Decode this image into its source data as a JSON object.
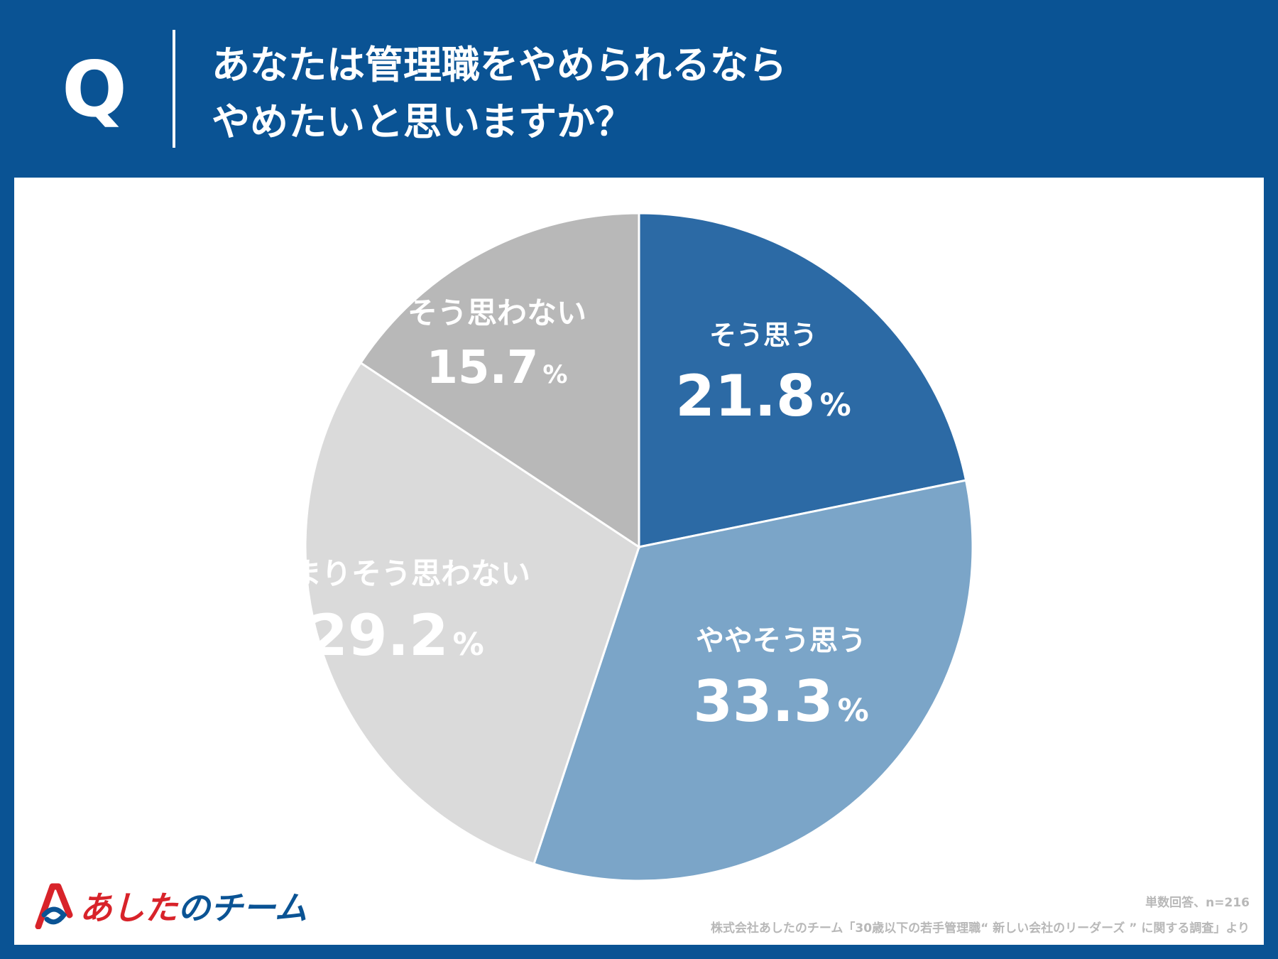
{
  "header": {
    "q_mark": "Q",
    "question_line1": "あなたは管理職をやめられるなら",
    "question_line2": "やめたいと思いますか？"
  },
  "chart_data": {
    "type": "pie",
    "title": "あなたは管理職をやめられるならやめたいと思いますか？",
    "start_angle_deg": 0,
    "direction": "clockwise",
    "slices": [
      {
        "label": "そう思う",
        "value": 21.8,
        "value_text": "21.8",
        "color": "#2c6aa5"
      },
      {
        "label": "ややそう思う",
        "value": 33.3,
        "value_text": "33.3",
        "color": "#7ba5c8"
      },
      {
        "label": "あまりそう思わない",
        "value": 29.2,
        "value_text": "29.2",
        "color": "#dadada"
      },
      {
        "label": "そう思わない",
        "value": 15.7,
        "value_text": "15.7",
        "color": "#b8b8b8"
      }
    ],
    "percent_sign": "%"
  },
  "footer": {
    "note": "単数回答、n=216",
    "source": "株式会社あしたのチーム「30歳以下の若手管理職“ 新しい会社のリーダーズ ” に関する調査」より"
  },
  "logo": {
    "text_red": "あした",
    "text_blue": "のチーム"
  }
}
